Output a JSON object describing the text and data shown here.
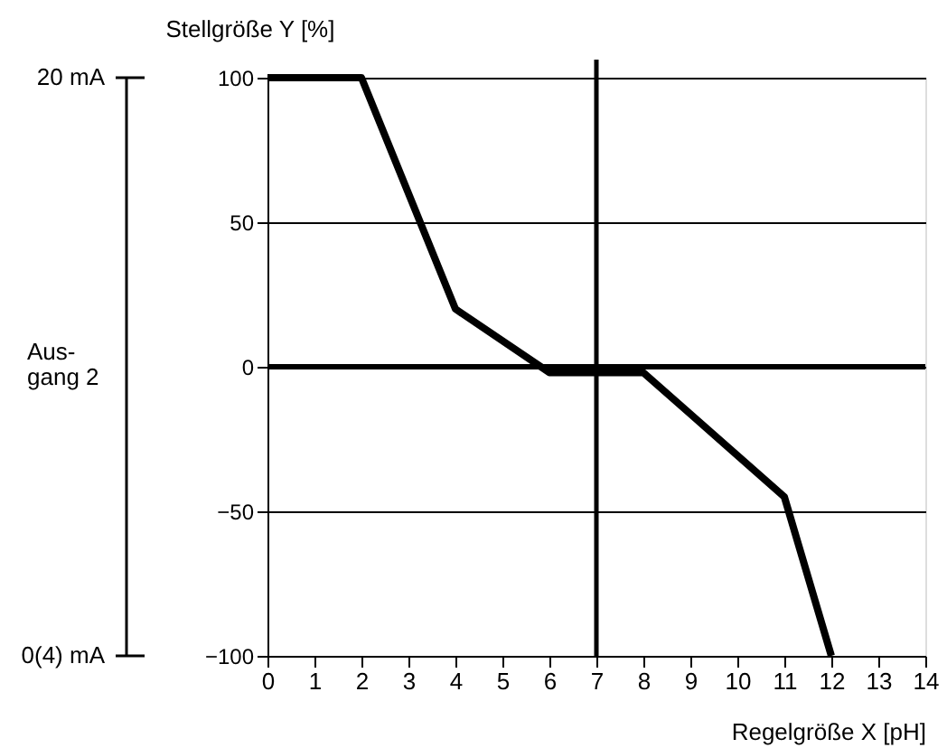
{
  "chart_data": {
    "type": "line",
    "xlabel": "Regelgröße X [pH]",
    "ylabel": "Stellgröße Y [%]",
    "annotations": [
      "20 mA",
      "Aus-\ngang 2",
      "0(4) mA"
    ],
    "x": [
      0,
      2,
      4,
      6,
      8,
      11,
      12
    ],
    "series": [
      {
        "color": "#000000",
        "values": [
          100,
          100,
          20,
          -2,
          -2,
          -45,
          -100
        ]
      }
    ],
    "xlim": [
      0,
      14
    ],
    "xticks": [
      0,
      1,
      2,
      3,
      4,
      5,
      6,
      7,
      8,
      9,
      10,
      11,
      12,
      13,
      14
    ],
    "ylim": [
      -100,
      100
    ],
    "yticks": [
      {
        "value": -100,
        "label": "−100"
      },
      {
        "value": -50,
        "label": "−50"
      },
      0,
      50,
      100
    ],
    "ref_lines": [
      {
        "axis": "y",
        "value": 0,
        "color": "#000000"
      },
      {
        "axis": "x",
        "value": 7,
        "color": "#000000"
      }
    ],
    "grid": "y",
    "marker": "none",
    "line_style": "solid"
  }
}
